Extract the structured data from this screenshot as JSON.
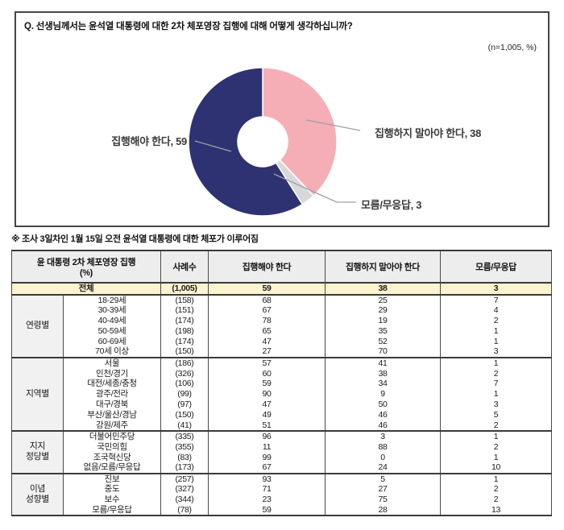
{
  "question": "Q. 선생님께서는 윤석열 대통령에 대한 2차 체포영장 집행에 대해 어떻게 생각하십니까?",
  "sample_note": "(n=1,005, %)",
  "footnote": "※ 조사 3일차인 1월 15일 오전 윤석열 대통령에 대한 체포가 이루어짐",
  "colors": {
    "execute_navy": "#2e3272",
    "not_execute_pink": "#f6aeb6",
    "dont_know_gray": "#d8d8d8",
    "leader_line": "#a0a0a0",
    "total_row_bg": "#fcf3d0",
    "header_bg": "#ededed",
    "group_bg": "#f1f1f1",
    "border_dark": "#3a3a3a"
  },
  "chart_data": [
    {
      "type": "pie",
      "subtype": "donut",
      "n_label": "n=1,005",
      "unit": "%",
      "slices": [
        {
          "id": "execute",
          "label": "집행해야 한다",
          "value": 59,
          "color": "#2e3272",
          "callout": "집행해야 한다, 59"
        },
        {
          "id": "not-execute",
          "label": "집행하지 말아야 한다",
          "value": 38,
          "color": "#f6aeb6",
          "callout": "집행하지 말아야 한다, 38"
        },
        {
          "id": "dont-know",
          "label": "모름/무응답",
          "value": 3,
          "color": "#d8d8d8",
          "callout": "모름/무응답, 3"
        }
      ],
      "draw_order_clockwise_from_top": [
        1,
        2,
        0
      ],
      "legend_position": "callouts"
    },
    {
      "type": "table",
      "title": "윤 대통령 2차 체포영장 집행",
      "unit_line": "(%)",
      "columns": [
        "사례수",
        "집행해야 한다",
        "집행하지 말아야 한다",
        "모름/무응답"
      ],
      "total": {
        "label": "전체",
        "n": "(1,005)",
        "values": [
          "59",
          "38",
          "3"
        ]
      },
      "groups": [
        {
          "id": "age",
          "label": "연령별",
          "rows": [
            [
              "18-29세",
              "(158)",
              "68",
              "25",
              "7"
            ],
            [
              "30-39세",
              "(151)",
              "67",
              "29",
              "4"
            ],
            [
              "40-49세",
              "(174)",
              "78",
              "19",
              "2"
            ],
            [
              "50-59세",
              "(198)",
              "65",
              "35",
              "1"
            ],
            [
              "60-69세",
              "(174)",
              "47",
              "52",
              "1"
            ],
            [
              "70세 이상",
              "(150)",
              "27",
              "70",
              "3"
            ]
          ]
        },
        {
          "id": "region",
          "label": "지역별",
          "rows": [
            [
              "서울",
              "(186)",
              "57",
              "41",
              "1"
            ],
            [
              "인천/경기",
              "(326)",
              "60",
              "38",
              "2"
            ],
            [
              "대전/세종/충청",
              "(106)",
              "59",
              "34",
              "7"
            ],
            [
              "광주/전라",
              "(99)",
              "90",
              "9",
              "1"
            ],
            [
              "대구/경북",
              "(97)",
              "47",
              "50",
              "3"
            ],
            [
              "부산/울산/경남",
              "(150)",
              "49",
              "46",
              "5"
            ],
            [
              "강원/제주",
              "(41)",
              "51",
              "46",
              "2"
            ]
          ]
        },
        {
          "id": "party",
          "label": "지지\n정당별",
          "rows": [
            [
              "더불어민주당",
              "(335)",
              "96",
              "3",
              "1"
            ],
            [
              "국민의힘",
              "(355)",
              "11",
              "88",
              "2"
            ],
            [
              "조국혁신당",
              "(83)",
              "99",
              "0",
              "1"
            ],
            [
              "없음/모름/무응답",
              "(173)",
              "67",
              "24",
              "10"
            ]
          ]
        },
        {
          "id": "ideology",
          "label": "이념\n성향별",
          "rows": [
            [
              "진보",
              "(257)",
              "93",
              "5",
              "1"
            ],
            [
              "중도",
              "(327)",
              "71",
              "27",
              "2"
            ],
            [
              "보수",
              "(344)",
              "23",
              "75",
              "2"
            ],
            [
              "모름/무응답",
              "(78)",
              "59",
              "28",
              "13"
            ]
          ]
        }
      ]
    }
  ]
}
